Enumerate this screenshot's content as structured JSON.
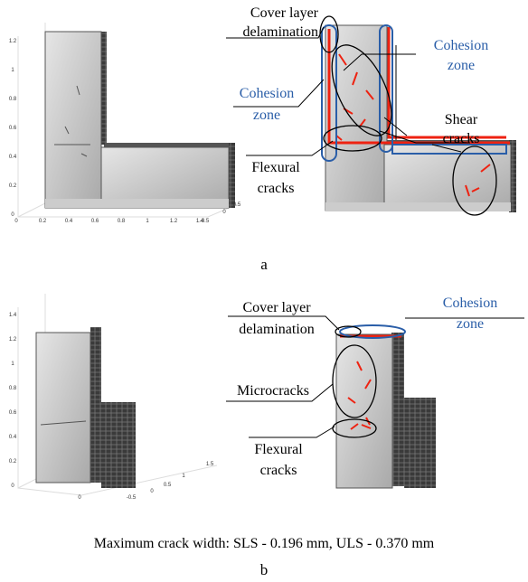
{
  "panels": [
    {
      "caption": "a",
      "y_ticks": [
        "1.2",
        "1",
        "0.8",
        "0.6",
        "0.4",
        "0.2",
        "0"
      ],
      "x_ticks": [
        "0",
        "0.2",
        "0.4",
        "0.6",
        "0.8",
        "1",
        "1.2",
        "1.4",
        "-0.5",
        "0",
        "0.5"
      ],
      "annotations": [
        {
          "lines": [
            "Cover layer",
            "delamination"
          ]
        },
        {
          "lines": [
            "Cohesion",
            "zone"
          ]
        },
        {
          "lines": [
            "Cohesion",
            "zone"
          ]
        },
        {
          "lines": [
            "Shear",
            "cracks"
          ]
        },
        {
          "lines": [
            "Flexural",
            "cracks"
          ]
        }
      ]
    },
    {
      "caption": "b",
      "note": "Maximum crack width: SLS - 0.196 mm, ULS - 0.370 mm",
      "y_ticks": [
        "1.4",
        "1.2",
        "1",
        "0.8",
        "0.6",
        "0.4",
        "0.2",
        "0"
      ],
      "x_ticks": [
        "0",
        "-0.5",
        "0",
        "0.5",
        "1",
        "1.5"
      ],
      "annotations": [
        {
          "lines": [
            "Cover layer",
            "delamination"
          ]
        },
        {
          "lines": [
            "Cohesion",
            "zone"
          ]
        },
        {
          "lines": [
            "Microcracks"
          ]
        },
        {
          "lines": [
            "Flexural",
            "cracks"
          ]
        }
      ]
    }
  ]
}
